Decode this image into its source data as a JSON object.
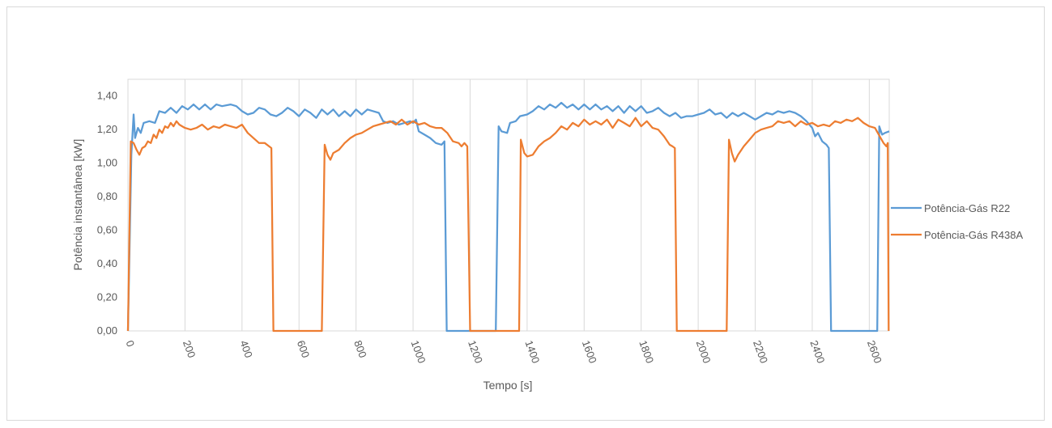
{
  "chart_data": {
    "type": "line",
    "title": "",
    "xlabel": "Tempo [s]",
    "ylabel": "Potência instantânea [kW]",
    "xlim": [
      0,
      2670
    ],
    "ylim": [
      0,
      1.5
    ],
    "x_ticks": [
      0,
      200,
      400,
      600,
      800,
      1000,
      1200,
      1400,
      1600,
      1800,
      2000,
      2200,
      2400,
      2600
    ],
    "y_ticks": [
      0.0,
      0.2,
      0.4,
      0.6,
      0.8,
      1.0,
      1.2,
      1.4
    ],
    "y_tick_labels": [
      "0,00",
      "0,20",
      "0,40",
      "0,60",
      "0,80",
      "1,00",
      "1,20",
      "1,40"
    ],
    "grid": "vertical",
    "legend_position": "right",
    "series": [
      {
        "name": "Potência-Gás R22",
        "color": "#5b9bd5",
        "points": [
          [
            0,
            0
          ],
          [
            12,
            1.05
          ],
          [
            20,
            1.29
          ],
          [
            25,
            1.15
          ],
          [
            35,
            1.21
          ],
          [
            45,
            1.18
          ],
          [
            55,
            1.24
          ],
          [
            75,
            1.25
          ],
          [
            95,
            1.24
          ],
          [
            110,
            1.31
          ],
          [
            130,
            1.3
          ],
          [
            150,
            1.33
          ],
          [
            170,
            1.3
          ],
          [
            190,
            1.34
          ],
          [
            210,
            1.32
          ],
          [
            230,
            1.35
          ],
          [
            250,
            1.32
          ],
          [
            270,
            1.35
          ],
          [
            290,
            1.32
          ],
          [
            310,
            1.35
          ],
          [
            330,
            1.34
          ],
          [
            360,
            1.35
          ],
          [
            380,
            1.34
          ],
          [
            400,
            1.31
          ],
          [
            420,
            1.29
          ],
          [
            440,
            1.3
          ],
          [
            460,
            1.33
          ],
          [
            480,
            1.32
          ],
          [
            500,
            1.29
          ],
          [
            520,
            1.28
          ],
          [
            540,
            1.3
          ],
          [
            560,
            1.33
          ],
          [
            580,
            1.31
          ],
          [
            600,
            1.28
          ],
          [
            620,
            1.32
          ],
          [
            640,
            1.3
          ],
          [
            660,
            1.27
          ],
          [
            680,
            1.32
          ],
          [
            700,
            1.29
          ],
          [
            720,
            1.32
          ],
          [
            740,
            1.28
          ],
          [
            760,
            1.31
          ],
          [
            780,
            1.28
          ],
          [
            800,
            1.32
          ],
          [
            820,
            1.29
          ],
          [
            840,
            1.32
          ],
          [
            860,
            1.31
          ],
          [
            880,
            1.3
          ],
          [
            895,
            1.25
          ],
          [
            910,
            1.24
          ],
          [
            930,
            1.25
          ],
          [
            950,
            1.23
          ],
          [
            970,
            1.24
          ],
          [
            990,
            1.25
          ],
          [
            1000,
            1.24
          ],
          [
            1010,
            1.26
          ],
          [
            1020,
            1.19
          ],
          [
            1040,
            1.17
          ],
          [
            1060,
            1.15
          ],
          [
            1080,
            1.12
          ],
          [
            1100,
            1.11
          ],
          [
            1110,
            1.13
          ],
          [
            1118,
            0
          ],
          [
            1180,
            0
          ],
          [
            1290,
            0
          ],
          [
            1300,
            1.22
          ],
          [
            1310,
            1.19
          ],
          [
            1330,
            1.18
          ],
          [
            1340,
            1.24
          ],
          [
            1360,
            1.25
          ],
          [
            1375,
            1.28
          ],
          [
            1400,
            1.29
          ],
          [
            1420,
            1.31
          ],
          [
            1440,
            1.34
          ],
          [
            1460,
            1.32
          ],
          [
            1480,
            1.35
          ],
          [
            1500,
            1.33
          ],
          [
            1520,
            1.36
          ],
          [
            1540,
            1.33
          ],
          [
            1560,
            1.35
          ],
          [
            1580,
            1.32
          ],
          [
            1600,
            1.35
          ],
          [
            1620,
            1.32
          ],
          [
            1640,
            1.35
          ],
          [
            1660,
            1.32
          ],
          [
            1680,
            1.34
          ],
          [
            1700,
            1.31
          ],
          [
            1720,
            1.34
          ],
          [
            1740,
            1.3
          ],
          [
            1760,
            1.34
          ],
          [
            1780,
            1.31
          ],
          [
            1800,
            1.34
          ],
          [
            1820,
            1.3
          ],
          [
            1840,
            1.31
          ],
          [
            1860,
            1.33
          ],
          [
            1880,
            1.3
          ],
          [
            1900,
            1.28
          ],
          [
            1920,
            1.3
          ],
          [
            1940,
            1.27
          ],
          [
            1960,
            1.28
          ],
          [
            1980,
            1.28
          ],
          [
            2000,
            1.29
          ],
          [
            2020,
            1.3
          ],
          [
            2040,
            1.32
          ],
          [
            2060,
            1.29
          ],
          [
            2080,
            1.3
          ],
          [
            2100,
            1.27
          ],
          [
            2120,
            1.3
          ],
          [
            2140,
            1.28
          ],
          [
            2160,
            1.3
          ],
          [
            2180,
            1.28
          ],
          [
            2200,
            1.26
          ],
          [
            2220,
            1.28
          ],
          [
            2240,
            1.3
          ],
          [
            2260,
            1.29
          ],
          [
            2280,
            1.31
          ],
          [
            2300,
            1.3
          ],
          [
            2320,
            1.31
          ],
          [
            2340,
            1.3
          ],
          [
            2360,
            1.28
          ],
          [
            2380,
            1.25
          ],
          [
            2400,
            1.21
          ],
          [
            2410,
            1.16
          ],
          [
            2420,
            1.18
          ],
          [
            2435,
            1.13
          ],
          [
            2450,
            1.11
          ],
          [
            2458,
            1.09
          ],
          [
            2466,
            0
          ],
          [
            2520,
            0
          ],
          [
            2628,
            0
          ],
          [
            2635,
            1.22
          ],
          [
            2645,
            1.17
          ],
          [
            2655,
            1.18
          ],
          [
            2670,
            1.19
          ]
        ]
      },
      {
        "name": "Potência-Gás R438A",
        "color": "#ed7d31",
        "points": [
          [
            0,
            0
          ],
          [
            10,
            1.13
          ],
          [
            20,
            1.12
          ],
          [
            30,
            1.08
          ],
          [
            40,
            1.05
          ],
          [
            50,
            1.09
          ],
          [
            60,
            1.1
          ],
          [
            70,
            1.13
          ],
          [
            80,
            1.12
          ],
          [
            90,
            1.17
          ],
          [
            100,
            1.15
          ],
          [
            110,
            1.2
          ],
          [
            120,
            1.18
          ],
          [
            130,
            1.22
          ],
          [
            140,
            1.21
          ],
          [
            150,
            1.24
          ],
          [
            160,
            1.22
          ],
          [
            170,
            1.25
          ],
          [
            180,
            1.23
          ],
          [
            190,
            1.22
          ],
          [
            200,
            1.21
          ],
          [
            220,
            1.2
          ],
          [
            240,
            1.21
          ],
          [
            260,
            1.23
          ],
          [
            280,
            1.2
          ],
          [
            300,
            1.22
          ],
          [
            320,
            1.21
          ],
          [
            340,
            1.23
          ],
          [
            360,
            1.22
          ],
          [
            380,
            1.21
          ],
          [
            400,
            1.23
          ],
          [
            420,
            1.18
          ],
          [
            440,
            1.15
          ],
          [
            460,
            1.12
          ],
          [
            480,
            1.12
          ],
          [
            495,
            1.1
          ],
          [
            503,
            1.09
          ],
          [
            510,
            0
          ],
          [
            600,
            0
          ],
          [
            680,
            0
          ],
          [
            690,
            1.11
          ],
          [
            700,
            1.05
          ],
          [
            710,
            1.02
          ],
          [
            720,
            1.06
          ],
          [
            740,
            1.08
          ],
          [
            760,
            1.12
          ],
          [
            780,
            1.15
          ],
          [
            800,
            1.17
          ],
          [
            820,
            1.18
          ],
          [
            840,
            1.2
          ],
          [
            860,
            1.22
          ],
          [
            880,
            1.23
          ],
          [
            900,
            1.24
          ],
          [
            920,
            1.25
          ],
          [
            940,
            1.23
          ],
          [
            960,
            1.26
          ],
          [
            980,
            1.23
          ],
          [
            1000,
            1.25
          ],
          [
            1020,
            1.23
          ],
          [
            1040,
            1.24
          ],
          [
            1060,
            1.22
          ],
          [
            1080,
            1.21
          ],
          [
            1100,
            1.21
          ],
          [
            1120,
            1.18
          ],
          [
            1140,
            1.13
          ],
          [
            1160,
            1.12
          ],
          [
            1170,
            1.1
          ],
          [
            1180,
            1.12
          ],
          [
            1190,
            1.1
          ],
          [
            1200,
            0
          ],
          [
            1290,
            0
          ],
          [
            1372,
            0
          ],
          [
            1378,
            1.14
          ],
          [
            1390,
            1.06
          ],
          [
            1400,
            1.04
          ],
          [
            1420,
            1.05
          ],
          [
            1440,
            1.1
          ],
          [
            1460,
            1.13
          ],
          [
            1480,
            1.15
          ],
          [
            1500,
            1.18
          ],
          [
            1520,
            1.22
          ],
          [
            1540,
            1.2
          ],
          [
            1560,
            1.24
          ],
          [
            1580,
            1.22
          ],
          [
            1600,
            1.26
          ],
          [
            1620,
            1.23
          ],
          [
            1640,
            1.25
          ],
          [
            1660,
            1.23
          ],
          [
            1680,
            1.26
          ],
          [
            1700,
            1.21
          ],
          [
            1720,
            1.26
          ],
          [
            1740,
            1.24
          ],
          [
            1760,
            1.22
          ],
          [
            1780,
            1.27
          ],
          [
            1800,
            1.22
          ],
          [
            1820,
            1.25
          ],
          [
            1840,
            1.21
          ],
          [
            1860,
            1.2
          ],
          [
            1880,
            1.16
          ],
          [
            1900,
            1.11
          ],
          [
            1910,
            1.1
          ],
          [
            1918,
            1.09
          ],
          [
            1925,
            0
          ],
          [
            2020,
            0
          ],
          [
            2100,
            0
          ],
          [
            2108,
            1.14
          ],
          [
            2118,
            1.06
          ],
          [
            2128,
            1.01
          ],
          [
            2140,
            1.05
          ],
          [
            2160,
            1.1
          ],
          [
            2180,
            1.14
          ],
          [
            2200,
            1.18
          ],
          [
            2220,
            1.2
          ],
          [
            2240,
            1.21
          ],
          [
            2260,
            1.22
          ],
          [
            2280,
            1.25
          ],
          [
            2300,
            1.24
          ],
          [
            2320,
            1.25
          ],
          [
            2340,
            1.22
          ],
          [
            2360,
            1.25
          ],
          [
            2380,
            1.23
          ],
          [
            2400,
            1.24
          ],
          [
            2420,
            1.22
          ],
          [
            2440,
            1.23
          ],
          [
            2460,
            1.22
          ],
          [
            2480,
            1.25
          ],
          [
            2500,
            1.24
          ],
          [
            2520,
            1.26
          ],
          [
            2540,
            1.25
          ],
          [
            2560,
            1.27
          ],
          [
            2580,
            1.24
          ],
          [
            2600,
            1.22
          ],
          [
            2620,
            1.21
          ],
          [
            2640,
            1.15
          ],
          [
            2650,
            1.12
          ],
          [
            2660,
            1.1
          ],
          [
            2665,
            1.12
          ],
          [
            2668,
            0
          ]
        ]
      }
    ]
  }
}
